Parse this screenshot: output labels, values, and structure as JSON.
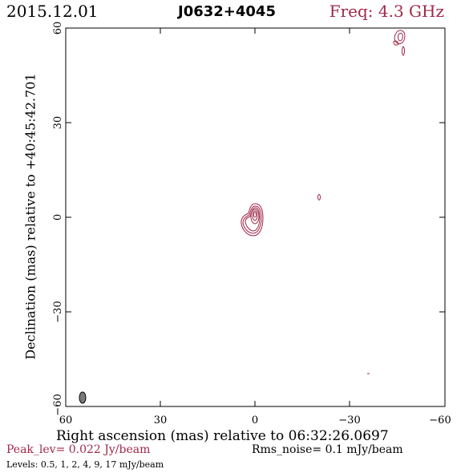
{
  "header": {
    "date": "2015.12.01",
    "source": "J0632+4045",
    "frequency": "Freq: 4.3 GHz"
  },
  "plot": {
    "xlabel": "Right ascension (mas) relative to 06:32:26.0697",
    "ylabel": "Declination (mas) relative to +40:45:42.701",
    "x_tick_labels": [
      "60",
      "30",
      "0",
      "−30",
      "−60"
    ],
    "y_tick_labels": [
      "60",
      "30",
      "0",
      "−30",
      "−60"
    ],
    "x_range": [
      60,
      -60
    ],
    "y_range": [
      -60,
      60
    ],
    "contour_color": "#a0284a",
    "beam_color": "#7a7a7a"
  },
  "footer": {
    "peak": "Peak_lev=  0.022 Jy/beam",
    "rms": "Rms_noise=   0.1 mJy/beam",
    "levels": "Levels: 0.5,    1,    2,    4,    9,   17 mJy/beam"
  }
}
